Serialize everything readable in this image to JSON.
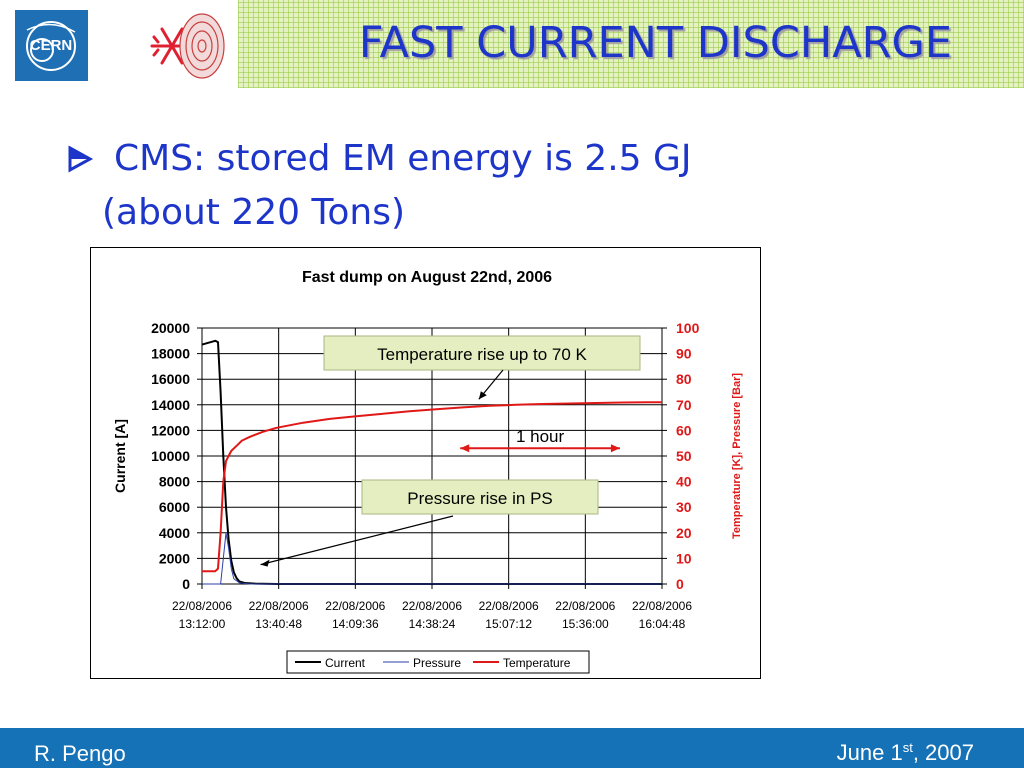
{
  "slide": {
    "title": "FAST CURRENT DISCHARGE",
    "bullet_line1": "CMS: stored EM energy is 2.5 GJ",
    "bullet_line2": "(about 220 Tons)",
    "footer_author": "R. Pengo",
    "footer_date_month": "June 1",
    "footer_date_suffix": "st",
    "footer_date_year": ", 2007",
    "logo_left": "CERN",
    "colors": {
      "title": "#1d35c9",
      "footer": "#1672b6",
      "title_band": "#e4f2bf"
    },
    "icons": [
      "cern-logo-icon",
      "snowflake-logo-icon",
      "bullet-arrow-icon"
    ]
  },
  "chart_data": {
    "type": "line",
    "title": "Fast dump on August 22nd, 2006",
    "ylabel": "Current [A]",
    "y2label": "Temperature [K], Pressure [Bar]",
    "ylim": [
      0,
      20000
    ],
    "y2lim": [
      0,
      100
    ],
    "y_ticks": [
      "0",
      "2000",
      "4000",
      "6000",
      "8000",
      "10000",
      "12000",
      "14000",
      "16000",
      "18000",
      "20000"
    ],
    "y2_ticks": [
      "0",
      "10",
      "20",
      "30",
      "40",
      "50",
      "60",
      "70",
      "80",
      "90",
      "100"
    ],
    "x_ticks": [
      {
        "date": "22/08/2006",
        "time": "13:12:00"
      },
      {
        "date": "22/08/2006",
        "time": "13:40:48"
      },
      {
        "date": "22/08/2006",
        "time": "14:09:36"
      },
      {
        "date": "22/08/2006",
        "time": "14:38:24"
      },
      {
        "date": "22/08/2006",
        "time": "15:07:12"
      },
      {
        "date": "22/08/2006",
        "time": "15:36:00"
      },
      {
        "date": "22/08/2006",
        "time": "16:04:48"
      }
    ],
    "xlim": [
      "13:12:00",
      "16:04:48"
    ],
    "grid": true,
    "legend_position": "bottom",
    "series": [
      {
        "name": "Current",
        "axis": "left",
        "color": "#000000",
        "x": [
          "13:12:00",
          "13:17:00",
          "13:18:00",
          "13:19:00",
          "13:20:00",
          "13:21:00",
          "13:22:00",
          "13:23:00",
          "13:24:00",
          "13:25:00",
          "13:26:00",
          "13:28:00",
          "13:32:00",
          "13:40:00",
          "14:30:00",
          "15:30:00",
          "16:04:48"
        ],
        "y": [
          18700,
          19000,
          18900,
          15000,
          10000,
          6000,
          3500,
          1800,
          900,
          450,
          200,
          80,
          30,
          0,
          0,
          0,
          0
        ]
      },
      {
        "name": "Pressure",
        "axis": "right",
        "color": "#2b3fa8",
        "x": [
          "13:12:00",
          "13:17:00",
          "13:19:00",
          "13:20:00",
          "13:21:00",
          "13:22:00",
          "13:23:00",
          "13:24:00",
          "13:26:00",
          "13:30:00",
          "16:04:48"
        ],
        "y": [
          0,
          0,
          0,
          10,
          20,
          14,
          6,
          2,
          0.5,
          0,
          0
        ]
      },
      {
        "name": "Temperature",
        "axis": "right",
        "color": "#e01818",
        "x": [
          "13:12:00",
          "13:17:00",
          "13:18:00",
          "13:19:00",
          "13:20:00",
          "13:21:00",
          "13:22:00",
          "13:23:00",
          "13:25:00",
          "13:27:00",
          "13:30:00",
          "13:35:00",
          "13:40:00",
          "13:50:00",
          "14:00:00",
          "14:10:00",
          "14:20:00",
          "14:30:00",
          "14:40:00",
          "14:50:00",
          "15:00:00",
          "15:10:00",
          "15:20:00",
          "15:30:00",
          "15:40:00",
          "15:50:00",
          "16:00:00",
          "16:04:48"
        ],
        "y": [
          5,
          5,
          6,
          20,
          40,
          48,
          50,
          52,
          54,
          56,
          57.5,
          59.5,
          61,
          63,
          64.5,
          65.5,
          66.5,
          67.5,
          68.3,
          69,
          69.6,
          70,
          70.3,
          70.5,
          70.7,
          70.9,
          71,
          71
        ]
      }
    ],
    "annotations": [
      {
        "text": "Temperature rise up to 70 K",
        "points_to": {
          "x": "14:56:00",
          "y2": 71
        }
      },
      {
        "text": "Pressure rise in PS",
        "points_to": {
          "x": "13:34:00",
          "y2": 6
        }
      },
      {
        "text": "1 hour",
        "span": [
          "14:49:00",
          "15:49:00"
        ],
        "y2": 55
      }
    ]
  }
}
